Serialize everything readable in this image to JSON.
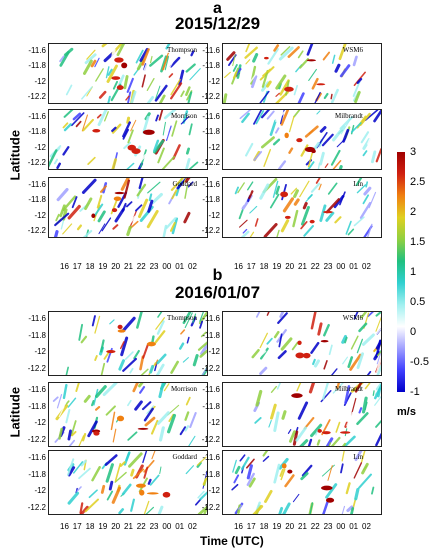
{
  "sections": [
    {
      "letter": "a",
      "date": "2015/12/29"
    },
    {
      "letter": "b",
      "date": "2016/01/07"
    }
  ],
  "y_axis_label": "Latitude",
  "x_axis_label": "Time (UTC)",
  "lat_ticks": [
    "-11.6",
    "-11.8",
    "-12",
    "-12.2"
  ],
  "time_ticks": [
    "16",
    "17",
    "18",
    "19",
    "20",
    "21",
    "22",
    "23",
    "00",
    "01",
    "02"
  ],
  "panel_names": [
    "Thompson",
    "WSM6",
    "Morrison",
    "Milbrandt",
    "Goddard",
    "Lin"
  ],
  "colorbar": {
    "unit": "m/s",
    "ticks": [
      "3",
      "2.5",
      "2",
      "1.5",
      "1",
      "0.5",
      "0",
      "-0.5",
      "-1"
    ],
    "range": [
      -1,
      3
    ],
    "colors": [
      "#0000c8",
      "#4040ff",
      "#a0a0ff",
      "#ffffff",
      "#a0f0f0",
      "#30d0d0",
      "#20c080",
      "#90d040",
      "#e0d020",
      "#f08010",
      "#d02010",
      "#a00000"
    ]
  },
  "chart_data": {
    "type": "heatmap",
    "title": "",
    "xlabel": "Time (UTC)",
    "ylabel": "Latitude",
    "x_ticks": [
      "16",
      "17",
      "18",
      "19",
      "20",
      "21",
      "22",
      "23",
      "00",
      "01",
      "02"
    ],
    "y_ticks": [
      "-11.6",
      "-11.8",
      "-12",
      "-12.2"
    ],
    "color_range": [
      -1,
      3
    ],
    "units": "m/s",
    "panels": [
      {
        "section": "2015/12/29",
        "scheme": "Thompson"
      },
      {
        "section": "2015/12/29",
        "scheme": "WSM6"
      },
      {
        "section": "2015/12/29",
        "scheme": "Morrison"
      },
      {
        "section": "2015/12/29",
        "scheme": "Milbrandt"
      },
      {
        "section": "2015/12/29",
        "scheme": "Goddard"
      },
      {
        "section": "2015/12/29",
        "scheme": "Lin"
      },
      {
        "section": "2016/01/07",
        "scheme": "Thompson"
      },
      {
        "section": "2016/01/07",
        "scheme": "WSM6"
      },
      {
        "section": "2016/01/07",
        "scheme": "Morrison"
      },
      {
        "section": "2016/01/07",
        "scheme": "Milbrandt"
      },
      {
        "section": "2016/01/07",
        "scheme": "Goddard"
      },
      {
        "section": "2016/01/07",
        "scheme": "Lin"
      }
    ]
  }
}
